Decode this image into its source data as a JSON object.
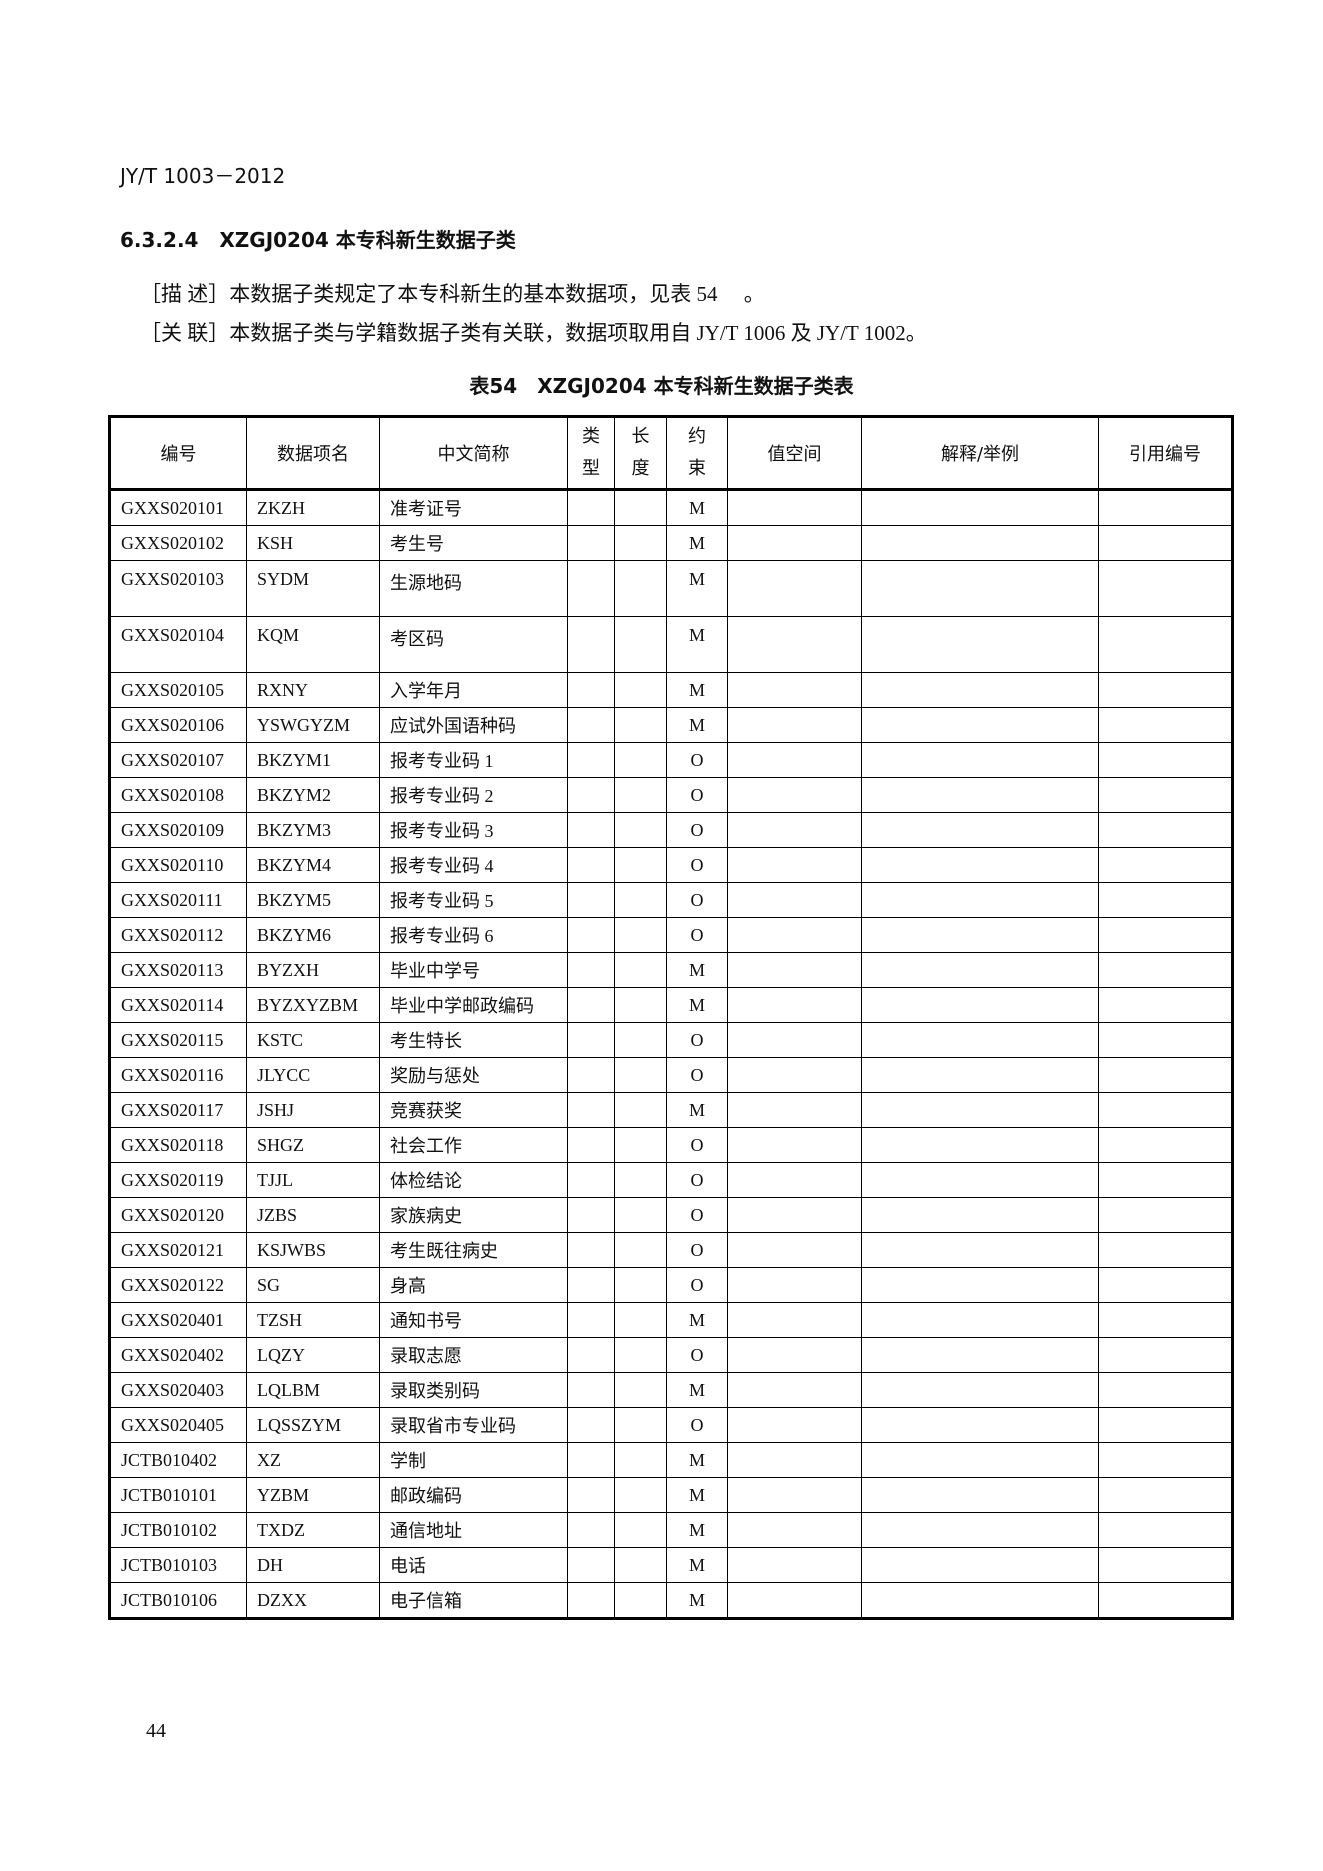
{
  "header": {
    "doc_code": "JY/T 1003－2012"
  },
  "section": {
    "number": "6.3.2.4",
    "title": "XZGJ0204 本专科新生数据子类"
  },
  "description": [
    {
      "label": "［描 述］",
      "text": "本数据子类规定了本专科新生的基本数据项，见表 54 　。"
    },
    {
      "label": "［关 联］",
      "text": "本数据子类与学籍数据子类有关联，数据项取用自 JY/T 1006 及 JY/T 1002。"
    }
  ],
  "table": {
    "caption": "表54　XZGJ0204 本专科新生数据子类表",
    "columns": [
      "编号",
      "数据项名",
      "中文简称",
      "类\n型",
      "长\n度",
      "约\n束",
      "值空间",
      "解释/举例",
      "引用编号"
    ],
    "rows": [
      [
        "GXXS020101",
        "ZKZH",
        "准考证号",
        "M"
      ],
      [
        "GXXS020102",
        "KSH",
        "考生号",
        "M"
      ],
      [
        "GXXS020103",
        "SYDM",
        "生源地码",
        "M"
      ],
      [
        "GXXS020104",
        "KQM",
        "考区码",
        "M"
      ],
      [
        "GXXS020105",
        "RXNY",
        "入学年月",
        "M"
      ],
      [
        "GXXS020106",
        "YSWGYZM",
        "应试外国语种码",
        "M"
      ],
      [
        "GXXS020107",
        "BKZYM1",
        "报考专业码 1",
        "O"
      ],
      [
        "GXXS020108",
        "BKZYM2",
        "报考专业码 2",
        "O"
      ],
      [
        "GXXS020109",
        "BKZYM3",
        "报考专业码 3",
        "O"
      ],
      [
        "GXXS020110",
        "BKZYM4",
        "报考专业码 4",
        "O"
      ],
      [
        "GXXS020111",
        "BKZYM5",
        "报考专业码 5",
        "O"
      ],
      [
        "GXXS020112",
        "BKZYM6",
        "报考专业码 6",
        "O"
      ],
      [
        "GXXS020113",
        "BYZXH",
        "毕业中学号",
        "M"
      ],
      [
        "GXXS020114",
        "BYZXYZBM",
        "毕业中学邮政编码",
        "M"
      ],
      [
        "GXXS020115",
        "KSTC",
        "考生特长",
        "O"
      ],
      [
        "GXXS020116",
        "JLYCC",
        "奖励与惩处",
        "O"
      ],
      [
        "GXXS020117",
        "JSHJ",
        "竞赛获奖",
        "M"
      ],
      [
        "GXXS020118",
        "SHGZ",
        "社会工作",
        "O"
      ],
      [
        "GXXS020119",
        "TJJL",
        "体检结论",
        "O"
      ],
      [
        "GXXS020120",
        "JZBS",
        "家族病史",
        "O"
      ],
      [
        "GXXS020121",
        "KSJWBS",
        "考生既往病史",
        "O"
      ],
      [
        "GXXS020122",
        "SG",
        "身高",
        "O"
      ],
      [
        "GXXS020401",
        "TZSH",
        "通知书号",
        "M"
      ],
      [
        "GXXS020402",
        "LQZY",
        "录取志愿",
        "O"
      ],
      [
        "GXXS020403",
        "LQLBM",
        "录取类别码",
        "M"
      ],
      [
        "GXXS020405",
        "LQSSZYM",
        "录取省市专业码",
        "O"
      ],
      [
        "JCTB010402",
        "XZ",
        "学制",
        "M"
      ],
      [
        "JCTB010101",
        "YZBM",
        "邮政编码",
        "M"
      ],
      [
        "JCTB010102",
        "TXDZ",
        "通信地址",
        "M"
      ],
      [
        "JCTB010103",
        "DH",
        "电话",
        "M"
      ],
      [
        "JCTB010106",
        "DZXX",
        "电子信箱",
        "M"
      ]
    ]
  },
  "footer": {
    "page_number": "44"
  }
}
